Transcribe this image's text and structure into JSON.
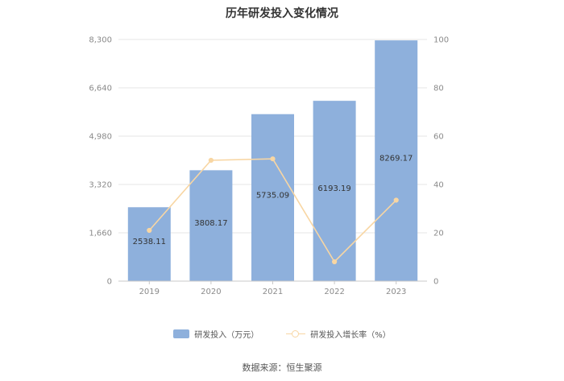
{
  "chart_data": {
    "type": "bar",
    "title": "历年研发投入变化情况",
    "categories": [
      "2019",
      "2020",
      "2021",
      "2022",
      "2023"
    ],
    "series": [
      {
        "name": "研发投入（万元）",
        "type": "bar",
        "axis": "left",
        "color": "#8eb0dc",
        "values": [
          2538.11,
          3808.17,
          5735.09,
          6193.19,
          8269.17
        ],
        "labels": [
          "2538.11",
          "3808.17",
          "5735.09",
          "6193.19",
          "8269.17"
        ]
      },
      {
        "name": "研发投入增长率（%）",
        "type": "line",
        "axis": "right",
        "color": "#f8d6a3",
        "values": [
          21.0,
          50.0,
          50.6,
          8.0,
          33.5
        ]
      }
    ],
    "y_left": {
      "ylim": [
        0,
        8300
      ],
      "ticks": [
        "0",
        "1,660",
        "3,320",
        "4,980",
        "6,640",
        "8,300"
      ]
    },
    "y_right": {
      "ylim": [
        0,
        100
      ],
      "ticks": [
        "0",
        "20",
        "40",
        "60",
        "80",
        "100"
      ]
    },
    "grid": true,
    "legend_position": "bottom",
    "source": "数据来源：恒生聚源"
  }
}
